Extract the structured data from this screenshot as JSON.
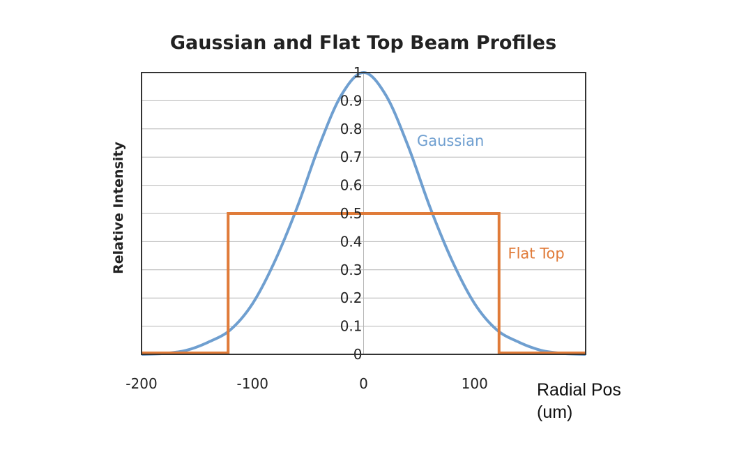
{
  "chart_data": {
    "type": "line",
    "title": "Gaussian and Flat Top Beam Profiles",
    "ylabel": "Relative Intensity",
    "xlabel_line1": "Radial Pos",
    "xlabel_line2": "(um)",
    "xlim": [
      -200,
      200
    ],
    "ylim": [
      0,
      1
    ],
    "x_ticks": [
      {
        "value": -200,
        "label": "-200"
      },
      {
        "value": -100,
        "label": "-100"
      },
      {
        "value": 0,
        "label": "0"
      },
      {
        "value": 100,
        "label": "100"
      }
    ],
    "y_ticks": [
      {
        "value": 1,
        "label": "1"
      },
      {
        "value": 0.9,
        "label": "0.9"
      },
      {
        "value": 0.8,
        "label": "0.8"
      },
      {
        "value": 0.7,
        "label": "0.7"
      },
      {
        "value": 0.6,
        "label": "0.6"
      },
      {
        "value": 0.5,
        "label": "0.5"
      },
      {
        "value": 0.4,
        "label": "0.4"
      },
      {
        "value": 0.3,
        "label": "0.3"
      },
      {
        "value": 0.2,
        "label": "0.2"
      },
      {
        "value": 0.1,
        "label": "0.1"
      },
      {
        "value": 0,
        "label": "0"
      }
    ],
    "grid": true,
    "series": [
      {
        "name": "Gaussian",
        "color": "#6f9fd0",
        "x": [
          -200,
          -180,
          -160,
          -140,
          -120,
          -100,
          -80,
          -60,
          -40,
          -20,
          0,
          20,
          40,
          60,
          80,
          100,
          120,
          140,
          160,
          180,
          200
        ],
        "y": [
          0.0,
          0.003,
          0.014,
          0.043,
          0.087,
          0.18,
          0.33,
          0.52,
          0.74,
          0.92,
          1.0,
          0.92,
          0.74,
          0.52,
          0.33,
          0.18,
          0.087,
          0.043,
          0.014,
          0.003,
          0.0
        ]
      },
      {
        "name": "Flat Top",
        "color": "#e07b39",
        "x": [
          -200,
          -122,
          -122,
          122,
          122,
          200
        ],
        "y": [
          0.005,
          0.005,
          0.5,
          0.5,
          0.005,
          0.005
        ]
      }
    ]
  }
}
